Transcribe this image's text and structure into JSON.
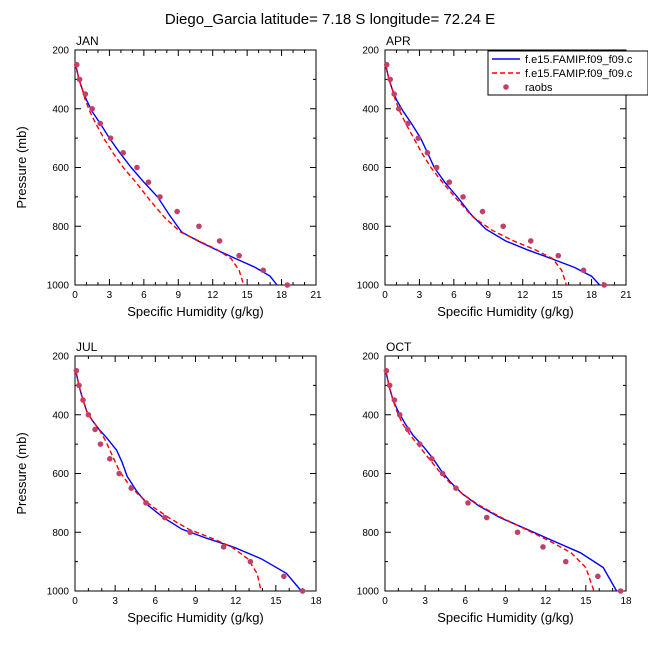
{
  "figure": {
    "title": "Diego_Garcia  latitude= 7.18 S longitude= 72.24 E"
  },
  "legend": {
    "entries": [
      {
        "label": "f.e15.FAMIP.f09_f09.c",
        "color": "#0000ff",
        "style": "solid"
      },
      {
        "label": "f.e15.FAMIP.f09_f09.c",
        "color": "#ff0000",
        "style": "dashed"
      },
      {
        "label": "raobs",
        "color": "#c0406a",
        "style": "marker"
      }
    ]
  },
  "chart_data": [
    {
      "type": "line",
      "panel": "JAN",
      "xlabel": "Specific Humidity (g/kg)",
      "ylabel": "Pressure (mb)",
      "xlim": [
        0,
        21
      ],
      "ylim": [
        200,
        1000
      ],
      "y_inverted": true,
      "xticks": [
        0,
        3,
        6,
        9,
        12,
        15,
        18,
        21
      ],
      "yticks": [
        200,
        400,
        600,
        800,
        1000
      ],
      "series": [
        {
          "name": "f.e15.FAMIP.f09_f09.c",
          "color": "#0000ff",
          "style": "solid",
          "x": [
            0.05,
            0.2,
            0.35,
            0.6,
            1.0,
            1.5,
            2.2,
            3.0,
            3.9,
            4.9,
            6.0,
            7.2,
            8.2,
            9.3,
            10.7,
            12.3,
            14.0,
            15.7,
            17.0,
            17.6
          ],
          "y": [
            250,
            275,
            300,
            330,
            370,
            410,
            450,
            500,
            550,
            600,
            650,
            700,
            760,
            820,
            850,
            880,
            910,
            940,
            970,
            1000
          ]
        },
        {
          "name": "f.e15.FAMIP.f09_f09.c",
          "color": "#ff0000",
          "style": "dashed",
          "x": [
            0.05,
            0.2,
            0.35,
            0.6,
            0.9,
            1.3,
            1.8,
            2.5,
            3.3,
            4.2,
            5.3,
            6.5,
            7.8,
            9.2,
            10.8,
            12.4,
            13.6,
            14.3,
            14.7
          ],
          "y": [
            250,
            275,
            300,
            330,
            370,
            410,
            450,
            500,
            550,
            600,
            650,
            710,
            770,
            820,
            850,
            880,
            910,
            950,
            1000
          ]
        },
        {
          "name": "raobs",
          "color": "#c0406a",
          "style": "marker",
          "x": [
            0.15,
            0.4,
            0.9,
            1.5,
            2.2,
            3.1,
            4.2,
            5.4,
            6.4,
            7.4,
            8.9,
            10.8,
            12.6,
            14.3,
            16.4,
            18.5
          ],
          "y": [
            250,
            300,
            350,
            400,
            450,
            500,
            550,
            600,
            650,
            700,
            750,
            800,
            850,
            900,
            950,
            1000
          ]
        }
      ]
    },
    {
      "type": "line",
      "panel": "APR",
      "xlabel": "Specific Humidity (g/kg)",
      "ylabel": "",
      "xlim": [
        0,
        21
      ],
      "ylim": [
        200,
        1000
      ],
      "y_inverted": true,
      "xticks": [
        0,
        3,
        6,
        9,
        12,
        15,
        18,
        21
      ],
      "yticks": [
        200,
        400,
        600,
        800,
        1000
      ],
      "series": [
        {
          "name": "f.e15.FAMIP.f09_f09.c",
          "color": "#0000ff",
          "style": "solid",
          "x": [
            0.05,
            0.2,
            0.35,
            0.6,
            1.0,
            1.6,
            2.3,
            3.1,
            3.7,
            4.3,
            5.2,
            6.3,
            7.5,
            8.8,
            10.5,
            12.4,
            14.5,
            16.5,
            18.0,
            18.7
          ],
          "y": [
            250,
            275,
            300,
            330,
            370,
            410,
            450,
            500,
            550,
            600,
            650,
            700,
            760,
            810,
            850,
            880,
            910,
            940,
            970,
            1000
          ]
        },
        {
          "name": "f.e15.FAMIP.f09_f09.c",
          "color": "#ff0000",
          "style": "dashed",
          "x": [
            0.05,
            0.2,
            0.35,
            0.6,
            0.9,
            1.3,
            1.8,
            2.5,
            3.2,
            4.0,
            5.0,
            6.3,
            7.7,
            9.4,
            11.2,
            13.1,
            14.6,
            15.4,
            15.8
          ],
          "y": [
            250,
            275,
            300,
            330,
            370,
            410,
            450,
            500,
            550,
            600,
            650,
            710,
            770,
            815,
            850,
            880,
            910,
            950,
            1000
          ]
        },
        {
          "name": "raobs",
          "color": "#c0406a",
          "style": "marker",
          "x": [
            0.15,
            0.45,
            0.8,
            1.2,
            2.0,
            2.9,
            3.7,
            4.5,
            5.6,
            6.8,
            8.5,
            10.3,
            12.7,
            15.1,
            17.3,
            19.1
          ],
          "y": [
            250,
            300,
            350,
            400,
            450,
            500,
            550,
            600,
            650,
            700,
            750,
            800,
            850,
            900,
            950,
            1000
          ]
        }
      ]
    },
    {
      "type": "line",
      "panel": "JUL",
      "xlabel": "Specific Humidity (g/kg)",
      "ylabel": "Pressure (mb)",
      "xlim": [
        0,
        18
      ],
      "ylim": [
        200,
        1000
      ],
      "y_inverted": true,
      "xticks": [
        0,
        3,
        6,
        9,
        12,
        15,
        18
      ],
      "yticks": [
        200,
        400,
        600,
        800,
        1000
      ],
      "series": [
        {
          "name": "f.e15.FAMIP.f09_f09.c",
          "color": "#0000ff",
          "style": "solid",
          "x": [
            0.05,
            0.2,
            0.35,
            0.6,
            0.9,
            1.3,
            1.8,
            2.4,
            3.1,
            3.5,
            3.9,
            4.6,
            5.5,
            6.6,
            8.0,
            9.8,
            11.8,
            13.9,
            15.8,
            16.9
          ],
          "y": [
            250,
            280,
            310,
            350,
            390,
            420,
            450,
            480,
            520,
            560,
            610,
            660,
            710,
            750,
            790,
            820,
            850,
            890,
            940,
            1000
          ]
        },
        {
          "name": "f.e15.FAMIP.f09_f09.c",
          "color": "#ff0000",
          "style": "dashed",
          "x": [
            0.05,
            0.2,
            0.35,
            0.6,
            0.9,
            1.3,
            1.8,
            2.3,
            2.8,
            3.3,
            3.9,
            4.7,
            5.7,
            7.0,
            8.5,
            10.2,
            11.7,
            12.9,
            13.6,
            13.9
          ],
          "y": [
            250,
            280,
            310,
            350,
            390,
            420,
            450,
            490,
            540,
            590,
            630,
            670,
            710,
            750,
            790,
            820,
            850,
            890,
            940,
            1000
          ]
        },
        {
          "name": "raobs",
          "color": "#c0406a",
          "style": "marker",
          "x": [
            0.1,
            0.3,
            0.6,
            1.0,
            1.5,
            1.9,
            2.6,
            3.3,
            4.2,
            5.3,
            6.7,
            8.6,
            11.1,
            13.1,
            15.6,
            17.0
          ],
          "y": [
            250,
            300,
            350,
            400,
            450,
            500,
            550,
            600,
            650,
            700,
            750,
            800,
            850,
            900,
            950,
            1000
          ]
        }
      ]
    },
    {
      "type": "line",
      "panel": "OCT",
      "xlabel": "Specific Humidity (g/kg)",
      "ylabel": "",
      "xlim": [
        0,
        18
      ],
      "ylim": [
        200,
        1000
      ],
      "y_inverted": true,
      "xticks": [
        0,
        3,
        6,
        9,
        12,
        15,
        18
      ],
      "yticks": [
        200,
        400,
        600,
        800,
        1000
      ],
      "series": [
        {
          "name": "f.e15.FAMIP.f09_f09.c",
          "color": "#0000ff",
          "style": "solid",
          "x": [
            0.05,
            0.2,
            0.35,
            0.6,
            1.0,
            1.5,
            2.1,
            2.9,
            3.6,
            4.2,
            4.9,
            5.8,
            7.0,
            8.6,
            10.6,
            12.6,
            14.6,
            16.3,
            17.3
          ],
          "y": [
            250,
            280,
            310,
            350,
            390,
            430,
            470,
            510,
            550,
            590,
            630,
            670,
            710,
            750,
            790,
            830,
            870,
            920,
            1000
          ]
        },
        {
          "name": "f.e15.FAMIP.f09_f09.c",
          "color": "#ff0000",
          "style": "dashed",
          "x": [
            0.05,
            0.2,
            0.35,
            0.6,
            0.9,
            1.3,
            1.9,
            2.6,
            3.3,
            4.0,
            4.8,
            5.8,
            7.1,
            8.7,
            10.5,
            12.3,
            13.9,
            15.0,
            15.6
          ],
          "y": [
            250,
            280,
            310,
            350,
            390,
            430,
            470,
            510,
            550,
            590,
            630,
            670,
            710,
            750,
            790,
            830,
            870,
            920,
            1000
          ]
        },
        {
          "name": "raobs",
          "color": "#c0406a",
          "style": "marker",
          "x": [
            0.1,
            0.35,
            0.7,
            1.1,
            1.7,
            2.6,
            3.5,
            4.3,
            5.3,
            6.2,
            7.6,
            9.9,
            11.8,
            13.5,
            15.9,
            17.6
          ],
          "y": [
            250,
            300,
            350,
            400,
            450,
            500,
            550,
            600,
            650,
            700,
            750,
            800,
            850,
            900,
            950,
            1000
          ]
        }
      ]
    }
  ]
}
